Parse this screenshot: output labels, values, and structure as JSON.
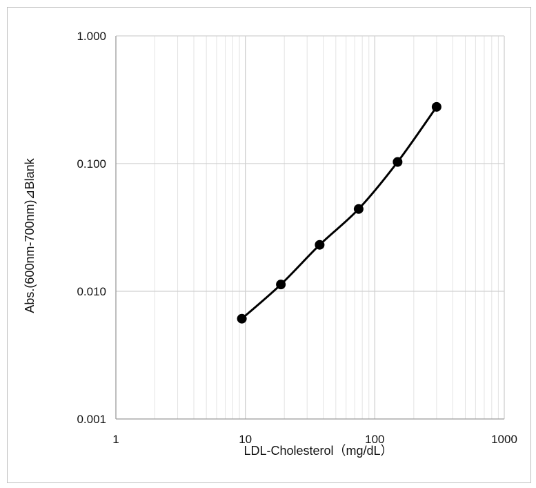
{
  "chart_data": {
    "type": "scatter",
    "title": "",
    "xlabel": "LDL-Cholesterol（mg/dL）",
    "ylabel": "Abs.(600nm-700nm)⊿Blank",
    "x_scale": "log",
    "y_scale": "log",
    "xlim": [
      1,
      1000
    ],
    "ylim": [
      0.001,
      1
    ],
    "x_ticks": [
      "1",
      "10",
      "100",
      "1000"
    ],
    "y_ticks": [
      "0.001",
      "0.010",
      "0.100",
      "1.000"
    ],
    "grid": true,
    "legend": "none",
    "line_style": "smoothed line with markers",
    "colors": {
      "series": "#000000",
      "major_grid": "#d0d0d0",
      "minor_grid": "#e3e3e3",
      "frame": "#bdbdbd"
    },
    "series": [
      {
        "x": [
          9.4,
          18.8,
          37.5,
          75,
          150,
          300
        ],
        "y": [
          0.0061,
          0.0113,
          0.0231,
          0.0441,
          0.103,
          0.278
        ]
      }
    ]
  }
}
